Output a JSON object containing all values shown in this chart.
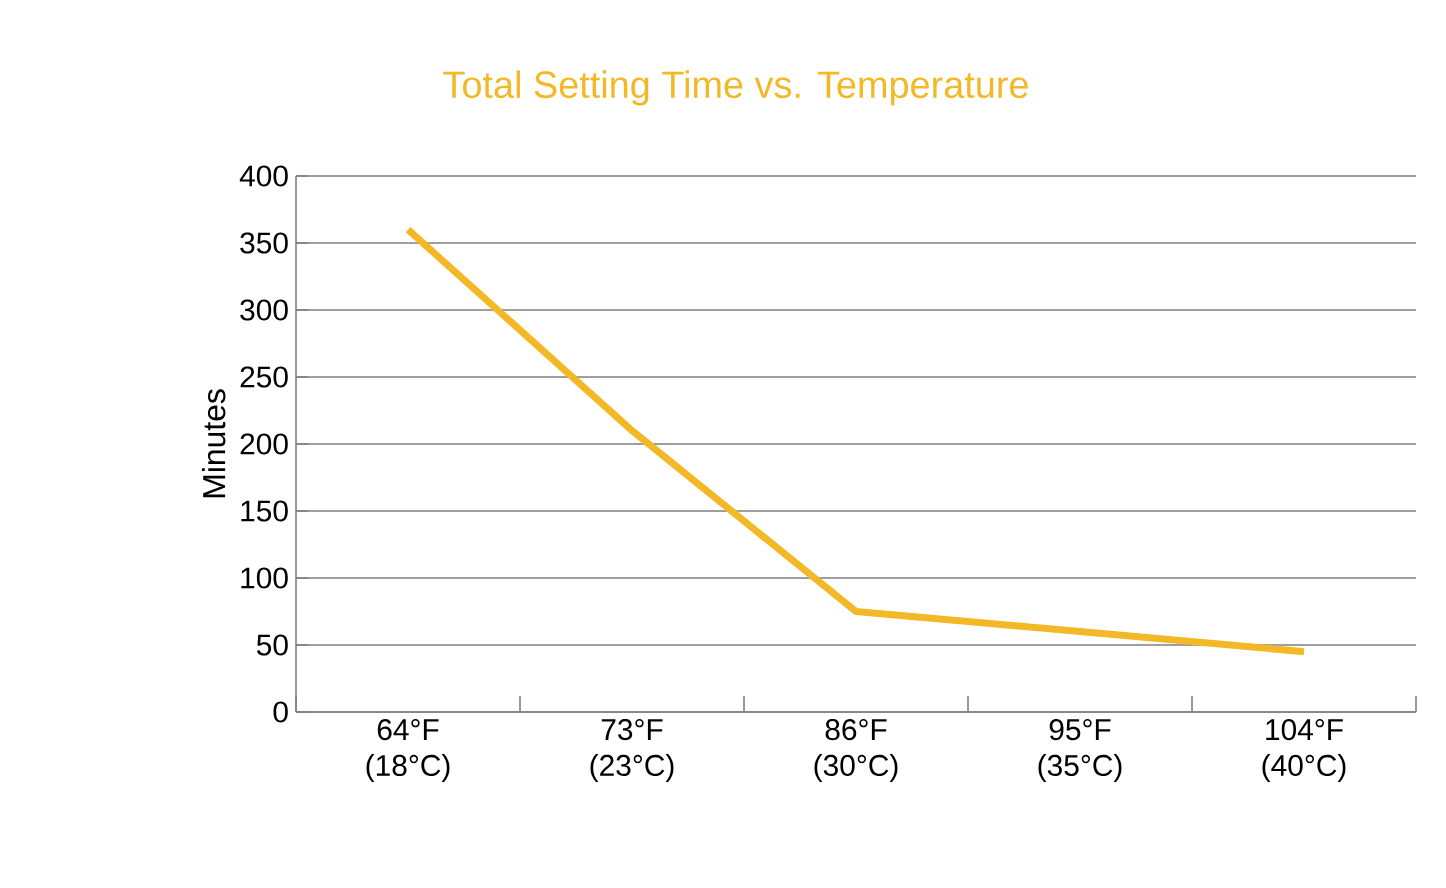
{
  "chart_data": {
    "type": "line",
    "title": "Total Setting Time vs. Temperature",
    "ylabel": "Minutes",
    "categories": [
      "64°F (18°C)",
      "73°F (23°C)",
      "86°F (30°C)",
      "95°F (35°C)",
      "104°F (40°C)"
    ],
    "series": [
      {
        "color": "#f2b826",
        "values": [
          360,
          210,
          75,
          60,
          45
        ]
      }
    ],
    "ylim": [
      0,
      400
    ],
    "yticks": [
      0,
      50,
      100,
      150,
      200,
      250,
      300,
      350,
      400
    ],
    "grid": "y",
    "marker": "none",
    "line_style": "solid"
  }
}
